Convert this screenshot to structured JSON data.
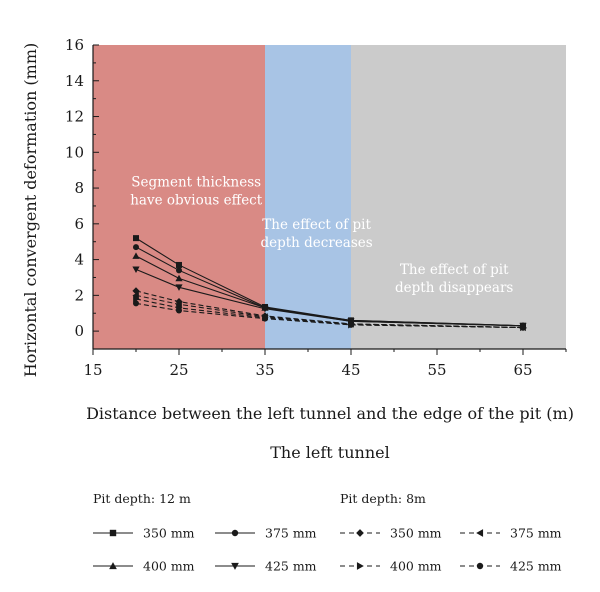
{
  "chart_data": {
    "type": "line",
    "title": "",
    "subtitle": "The left tunnel",
    "xlabel": "Distance between the left tunnel and the edge of the pit (m)",
    "ylabel": "Horizontal convergent deformation (mm)",
    "xlim": [
      15,
      70
    ],
    "ylim": [
      -1,
      16
    ],
    "xticks": [
      15,
      25,
      35,
      45,
      55,
      65
    ],
    "yticks": [
      0,
      2,
      4,
      6,
      8,
      10,
      12,
      14,
      16
    ],
    "x": [
      20,
      25,
      35,
      45,
      65
    ],
    "grid": false,
    "regions": [
      {
        "x0": 15,
        "x1": 35,
        "color": "#d98a85",
        "label_lines": [
          "Segment thickness",
          "have obvious effect"
        ],
        "label_x": 27,
        "label_y": 8.1
      },
      {
        "x0": 35,
        "x1": 45,
        "color": "#a8c4e5",
        "label_lines": [
          "The effect of pit",
          "depth decreases"
        ],
        "label_x": 41,
        "label_y": 5.7
      },
      {
        "x0": 45,
        "x1": 70,
        "color": "#cbcbcb",
        "label_lines": [
          "The effect of pit",
          "depth disappears"
        ],
        "label_x": 57,
        "label_y": 3.2
      }
    ],
    "legend": {
      "placement": "bottom",
      "groups": [
        "Pit depth: 12 m",
        "Pit depth: 8m"
      ]
    },
    "series": [
      {
        "name": "350 mm",
        "group": "Pit depth: 12 m",
        "marker": "square",
        "dash": "solid",
        "values": [
          5.2,
          3.7,
          1.35,
          0.6,
          0.3
        ]
      },
      {
        "name": "375 mm",
        "group": "Pit depth: 12 m",
        "marker": "circle",
        "dash": "solid",
        "values": [
          4.7,
          3.4,
          1.3,
          0.6,
          0.3
        ]
      },
      {
        "name": "400 mm",
        "group": "Pit depth: 12 m",
        "marker": "triangle-up",
        "dash": "solid",
        "values": [
          4.2,
          2.95,
          1.3,
          0.55,
          0.3
        ]
      },
      {
        "name": "425 mm",
        "group": "Pit depth: 12 m",
        "marker": "triangle-down",
        "dash": "solid",
        "values": [
          3.45,
          2.45,
          1.25,
          0.55,
          0.3
        ]
      },
      {
        "name": "350 mm",
        "group": "Pit depth: 8m",
        "marker": "diamond",
        "dash": "dashed",
        "values": [
          2.25,
          1.65,
          0.85,
          0.4,
          0.2
        ]
      },
      {
        "name": "375 mm",
        "group": "Pit depth: 8m",
        "marker": "triangle-left",
        "dash": "dashed",
        "values": [
          2.0,
          1.5,
          0.8,
          0.4,
          0.2
        ]
      },
      {
        "name": "400 mm",
        "group": "Pit depth: 8m",
        "marker": "triangle-right",
        "dash": "dashed",
        "values": [
          1.8,
          1.3,
          0.75,
          0.35,
          0.2
        ]
      },
      {
        "name": "425 mm",
        "group": "Pit depth: 8m",
        "marker": "circle",
        "dash": "dashed",
        "values": [
          1.55,
          1.15,
          0.7,
          0.35,
          0.2
        ]
      }
    ]
  }
}
